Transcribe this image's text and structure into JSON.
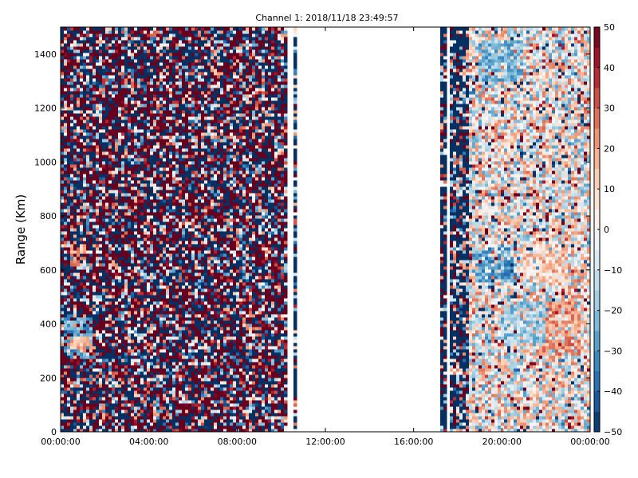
{
  "chart_data": {
    "type": "heatmap",
    "title": "Channel 1: 2018/11/18 23:49:57",
    "ylabel": "Range (Km)",
    "xlabel": "",
    "x_range_hours": [
      0,
      24
    ],
    "x_tick_hours": [
      0,
      4,
      8,
      12,
      16,
      20,
      24
    ],
    "x_tick_labels": [
      "00:00:00",
      "04:00:00",
      "08:00:00",
      "12:00:00",
      "16:00:00",
      "20:00:00",
      "00:00:00"
    ],
    "ylim": [
      0,
      1500
    ],
    "y_ticks": [
      0,
      200,
      400,
      600,
      800,
      1000,
      1200,
      1400
    ],
    "colorbar": {
      "colormap": "RdBu_r",
      "vmin": -50,
      "vmax": 50,
      "ticks": [
        -50,
        -40,
        -30,
        -20,
        -10,
        0,
        10,
        20,
        30,
        40,
        50
      ]
    },
    "data_gaps_hours": [
      [
        10.2,
        10.5
      ],
      [
        10.7,
        17.2
      ],
      [
        17.5,
        17.6
      ]
    ],
    "regions": {
      "noisy_block_hours": [
        0,
        10.2
      ],
      "quiet_block_hours": [
        18.5,
        24
      ],
      "features": [
        {
          "hours": [
            0.2,
            1.5
          ],
          "range_km": [
            270,
            420
          ],
          "mean": -25
        },
        {
          "hours": [
            0.3,
            1.4
          ],
          "range_km": [
            290,
            360
          ],
          "mean": 15
        },
        {
          "hours": [
            0.4,
            1.2
          ],
          "range_km": [
            610,
            700
          ],
          "mean": 18
        },
        {
          "hours": [
            21.5,
            23.5
          ],
          "range_km": [
            280,
            480
          ],
          "mean": 22
        },
        {
          "hours": [
            20.0,
            22.0
          ],
          "range_km": [
            330,
            480
          ],
          "mean": -18
        },
        {
          "hours": [
            18.8,
            20.5
          ],
          "range_km": [
            560,
            680
          ],
          "mean": -28
        },
        {
          "hours": [
            21.0,
            23.0
          ],
          "range_km": [
            560,
            700
          ],
          "mean": 12
        },
        {
          "hours": [
            19.0,
            21.0
          ],
          "range_km": [
            1300,
            1450
          ],
          "mean": -22
        }
      ]
    }
  },
  "colors": {
    "low": "#053061",
    "mid": "#f7f7f7",
    "high": "#67001f"
  }
}
